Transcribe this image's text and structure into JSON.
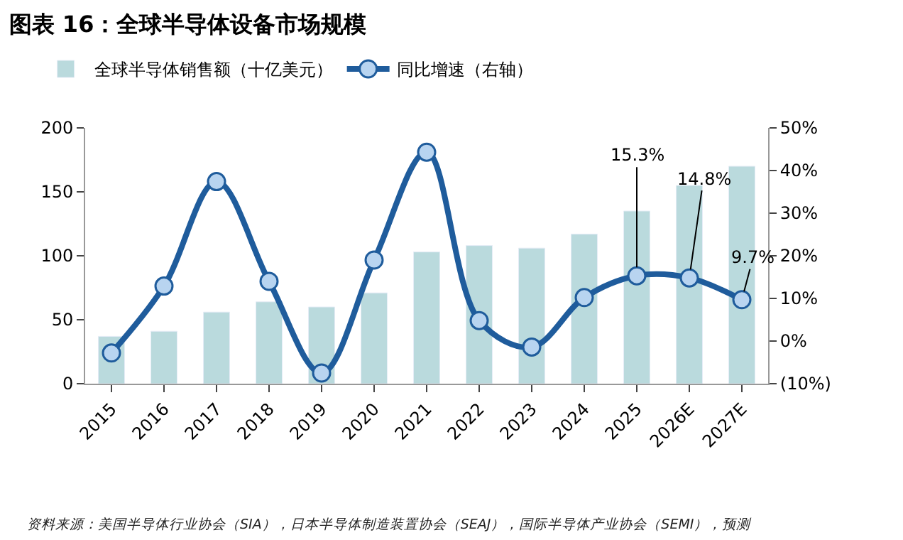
{
  "chart_data": {
    "type": "bar",
    "title": "图表 16：全球半导体设备市场规模",
    "categories": [
      "2015",
      "2016",
      "2017",
      "2018",
      "2019",
      "2020",
      "2021",
      "2022",
      "2023",
      "2024",
      "2025",
      "2026E",
      "2027E"
    ],
    "series": [
      {
        "name": "全球半导体销售额（十亿美元）",
        "color": "#badadd",
        "values": [
          37,
          41,
          56,
          64,
          60,
          71,
          103,
          108,
          106,
          117,
          135,
          155,
          170
        ]
      },
      {
        "name": "同比增速（右轴）",
        "type": "line",
        "axis": "y2",
        "color": "#1f5c9c",
        "marker": "circle",
        "values": [
          -2.8,
          12.9,
          37.4,
          14.0,
          -7.5,
          19.0,
          44.3,
          4.8,
          -1.4,
          10.2,
          15.3,
          14.8,
          9.7
        ],
        "value_labels": [
          null,
          null,
          null,
          null,
          null,
          null,
          null,
          null,
          null,
          null,
          "15.3%",
          "14.8%",
          "9.7%"
        ]
      }
    ],
    "ylim": [
      0,
      200
    ],
    "yticks": [
      0,
      50,
      100,
      150,
      200
    ],
    "y2lim": [
      -10,
      50
    ],
    "y2ticks": [
      {
        "value": -10,
        "label": "(10%)"
      },
      {
        "value": 0,
        "label": "0%"
      },
      {
        "value": 10,
        "label": "10%"
      },
      {
        "value": 20,
        "label": "20%"
      },
      {
        "value": 30,
        "label": "30%"
      },
      {
        "value": 40,
        "label": "40%"
      },
      {
        "value": 50,
        "label": "50%"
      }
    ],
    "legend": "top",
    "annotations": [
      "资料来源：美国半导体行业协会（SIA），日本半导体制造装置协会（SEAJ），国际半导体产业协会（SEMI），预测"
    ]
  }
}
